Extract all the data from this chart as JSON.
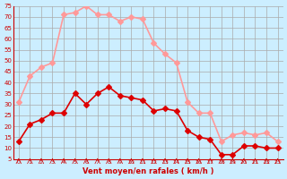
{
  "xlabel": "Vent moyen/en rafales ( km/h )",
  "ylabel": "",
  "bg_color": "#cceeff",
  "grid_color": "#aaaaaa",
  "x": [
    0,
    1,
    2,
    3,
    4,
    5,
    6,
    7,
    8,
    9,
    10,
    11,
    12,
    13,
    14,
    15,
    16,
    17,
    18,
    19,
    20,
    21,
    22,
    23
  ],
  "y_mean": [
    13,
    21,
    23,
    26,
    26,
    35,
    30,
    35,
    38,
    34,
    33,
    32,
    27,
    28,
    27,
    18,
    15,
    14,
    7,
    7,
    11,
    11,
    10,
    10
  ],
  "y_gust": [
    31,
    43,
    47,
    49,
    71,
    72,
    75,
    71,
    71,
    68,
    70,
    69,
    58,
    53,
    49,
    31,
    26,
    26,
    13,
    16,
    17,
    16,
    17,
    13
  ],
  "mean_color": "#dd0000",
  "gust_color": "#ff9999",
  "ylim": [
    5,
    75
  ],
  "yticks": [
    5,
    10,
    15,
    20,
    25,
    30,
    35,
    40,
    45,
    50,
    55,
    60,
    65,
    70,
    75
  ],
  "marker_size": 3,
  "line_width": 1.2
}
